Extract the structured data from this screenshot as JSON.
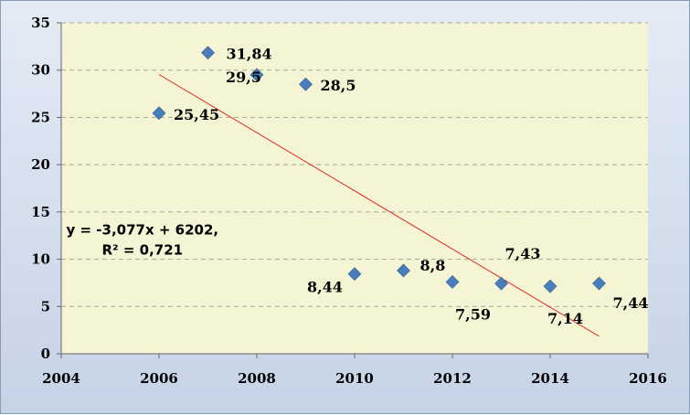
{
  "chart_data": {
    "type": "scatter",
    "title": "",
    "xlabel": "",
    "ylabel": "",
    "xlim": [
      2004,
      2016
    ],
    "ylim": [
      0,
      35
    ],
    "xticks": [
      2004,
      2006,
      2008,
      2010,
      2012,
      2014,
      2016
    ],
    "yticks": [
      0,
      5,
      10,
      15,
      20,
      25,
      30,
      35
    ],
    "grid": "horizontal dashed",
    "legend": "none",
    "colors": {
      "plot_background": "#f5f5d5",
      "marker": "#4a7ebb",
      "trendline": "#e0271e",
      "frame": "#c6d3e6"
    },
    "series": [
      {
        "x": [
          2006,
          2007,
          2008,
          2009,
          2010,
          2011,
          2012,
          2013,
          2014,
          2015
        ],
        "y": [
          25.45,
          31.84,
          29.5,
          28.5,
          8.44,
          8.8,
          7.59,
          7.43,
          7.14,
          7.44
        ],
        "labels": [
          "25,45",
          "31,84",
          "29,5",
          "28,5",
          "8,44",
          "8,8",
          "7,59",
          "7,43",
          "7,14",
          "7,44"
        ]
      }
    ],
    "trendline": {
      "type": "linear",
      "slope": -3.077,
      "intercept": 6202,
      "x_range": [
        2006,
        2015
      ],
      "equation": "y = -3,077x + 6202,",
      "r2": "R² = 0,721"
    }
  }
}
